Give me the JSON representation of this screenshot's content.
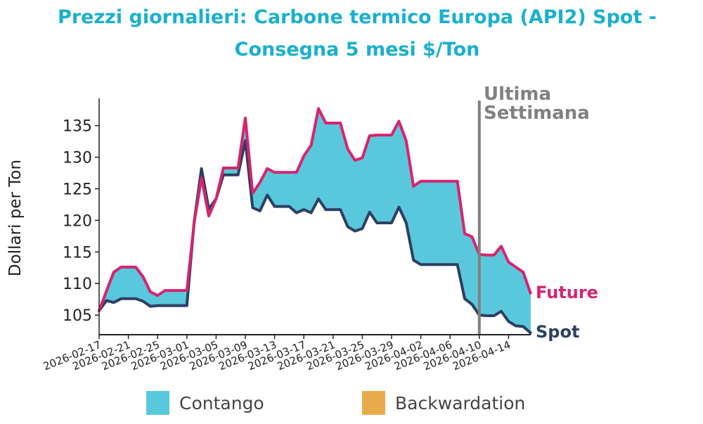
{
  "chart_data": {
    "type": "area",
    "title_line1": "Prezzi giornalieri: Carbone termico Europa (API2) Spot -",
    "title_line2": "Consegna 5 mesi $/Ton",
    "ylabel": "Dollari per Ton",
    "xlabel": "",
    "ylim": [
      101.9,
      139.3
    ],
    "yticks": [
      105,
      110,
      115,
      120,
      125,
      130,
      135
    ],
    "xtick_labels": [
      "2026-02-17",
      "2026-02-21",
      "2026-02-25",
      "2026-03-01",
      "2026-03-05",
      "2026-03-09",
      "2026-03-13",
      "2026-03-17",
      "2026-03-21",
      "2026-03-25",
      "2026-03-29",
      "2026-04-02",
      "2026-04-06",
      "2026-04-10",
      "2026-04-14"
    ],
    "x": [
      "2026-02-17",
      "2026-02-18",
      "2026-02-19",
      "2026-02-20",
      "2026-02-21",
      "2026-02-22",
      "2026-02-23",
      "2026-02-24",
      "2026-02-25",
      "2026-02-26",
      "2026-02-27",
      "2026-02-28",
      "2026-03-01",
      "2026-03-02",
      "2026-03-03",
      "2026-03-04",
      "2026-03-05",
      "2026-03-06",
      "2026-03-07",
      "2026-03-08",
      "2026-03-09",
      "2026-03-10",
      "2026-03-11",
      "2026-03-12",
      "2026-03-13",
      "2026-03-14",
      "2026-03-15",
      "2026-03-16",
      "2026-03-17",
      "2026-03-18",
      "2026-03-19",
      "2026-03-20",
      "2026-03-21",
      "2026-03-22",
      "2026-03-23",
      "2026-03-24",
      "2026-03-25",
      "2026-03-26",
      "2026-03-27",
      "2026-03-28",
      "2026-03-29",
      "2026-03-30",
      "2026-03-31",
      "2026-04-01",
      "2026-04-02",
      "2026-04-03",
      "2026-04-04",
      "2026-04-05",
      "2026-04-06",
      "2026-04-07",
      "2026-04-08",
      "2026-04-09",
      "2026-04-10",
      "2026-04-11",
      "2026-04-12",
      "2026-04-13",
      "2026-04-14",
      "2026-04-15",
      "2026-04-16",
      "2026-04-17"
    ],
    "series": [
      {
        "name": "Future",
        "color": "#d6246e",
        "values": [
          105.7,
          108.8,
          111.8,
          112.6,
          112.6,
          112.6,
          111.1,
          108.7,
          108.1,
          108.9,
          108.9,
          108.9,
          108.9,
          119.6,
          126.7,
          120.7,
          123.4,
          128.3,
          128.3,
          128.3,
          136.2,
          124.3,
          126.0,
          128.2,
          127.6,
          127.6,
          127.6,
          127.6,
          130.2,
          131.9,
          137.7,
          135.4,
          135.4,
          135.4,
          131.3,
          129.5,
          129.9,
          133.4,
          133.5,
          133.5,
          133.5,
          135.7,
          132.6,
          125.4,
          126.2,
          126.2,
          126.2,
          126.2,
          126.2,
          126.2,
          117.9,
          117.4,
          114.6,
          114.5,
          114.5,
          115.9,
          113.4,
          112.6,
          111.8,
          108.5
        ]
      },
      {
        "name": "Spot",
        "color": "#2e3f63",
        "values": [
          105.7,
          107.3,
          107.0,
          107.6,
          107.6,
          107.6,
          107.2,
          106.4,
          106.5,
          106.5,
          106.5,
          106.5,
          106.5,
          119.8,
          128.2,
          121.8,
          123.4,
          127.2,
          127.2,
          127.2,
          132.6,
          122.0,
          121.5,
          124.0,
          122.2,
          122.2,
          122.2,
          121.2,
          121.7,
          121.2,
          123.4,
          121.7,
          121.7,
          121.7,
          119.0,
          118.3,
          118.7,
          121.3,
          119.6,
          119.6,
          119.6,
          122.1,
          119.6,
          113.7,
          113.0,
          113.0,
          113.0,
          113.0,
          113.0,
          113.0,
          107.6,
          106.7,
          105.0,
          104.9,
          104.9,
          105.6,
          104.0,
          103.3,
          103.2,
          102.2
        ]
      }
    ],
    "marker": {
      "date": "2026-04-10",
      "label_line1": "Ultima",
      "label_line2": "Settimana",
      "color": "#808080"
    },
    "legend": {
      "placement": "bottom",
      "items": [
        {
          "label": "Contango",
          "color": "#5ac8dc"
        },
        {
          "label": "Backwardation",
          "color": "#e8ac4c"
        }
      ]
    }
  }
}
